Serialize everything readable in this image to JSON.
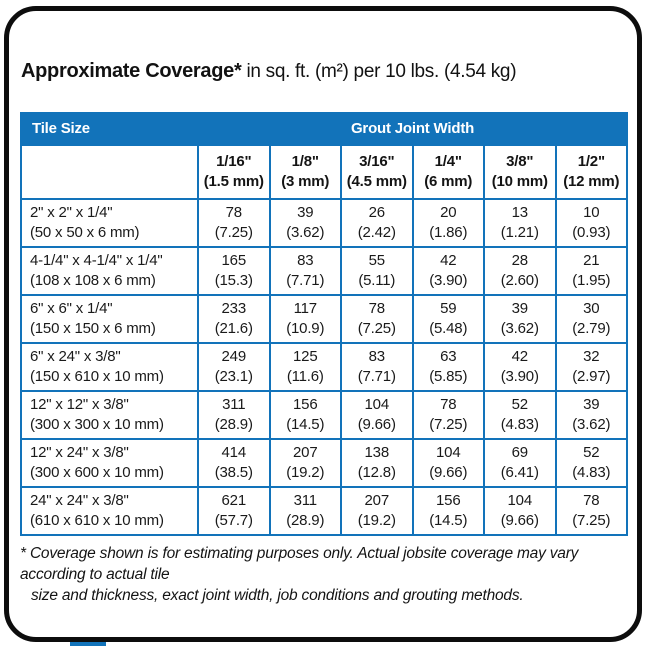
{
  "title": {
    "main": "Approximate Coverage*",
    "suffix": "in sq. ft. (m²) per 10 lbs. (4.54 kg)"
  },
  "colors": {
    "accent_blue": "#1273ba",
    "frame_black": "#0d0d0d",
    "header_text": "#ffffff",
    "body_text": "#1a1a1a"
  },
  "table": {
    "header": {
      "tile_size": "Tile Size",
      "grout_joint_width": "Grout Joint Width"
    },
    "columns": [
      {
        "width": "1/16\"",
        "metric": "(1.5 mm)"
      },
      {
        "width": "1/8\"",
        "metric": "(3 mm)"
      },
      {
        "width": "3/16\"",
        "metric": "(4.5 mm)"
      },
      {
        "width": "1/4\"",
        "metric": "(6 mm)"
      },
      {
        "width": "3/8\"",
        "metric": "(10 mm)"
      },
      {
        "width": "1/2\"",
        "metric": "(12 mm)"
      }
    ],
    "rows": [
      {
        "size": "2\" x 2\" x 1/4\"",
        "size_metric": "(50 x 50 x 6 mm)",
        "values": [
          {
            "sqft": "78",
            "m2": "(7.25)"
          },
          {
            "sqft": "39",
            "m2": "(3.62)"
          },
          {
            "sqft": "26",
            "m2": "(2.42)"
          },
          {
            "sqft": "20",
            "m2": "(1.86)"
          },
          {
            "sqft": "13",
            "m2": "(1.21)"
          },
          {
            "sqft": "10",
            "m2": "(0.93)"
          }
        ]
      },
      {
        "size": "4-1/4\" x 4-1/4\" x 1/4\"",
        "size_metric": "(108 x 108 x 6 mm)",
        "values": [
          {
            "sqft": "165",
            "m2": "(15.3)"
          },
          {
            "sqft": "83",
            "m2": "(7.71)"
          },
          {
            "sqft": "55",
            "m2": "(5.11)"
          },
          {
            "sqft": "42",
            "m2": "(3.90)"
          },
          {
            "sqft": "28",
            "m2": "(2.60)"
          },
          {
            "sqft": "21",
            "m2": "(1.95)"
          }
        ]
      },
      {
        "size": "6\" x 6\" x 1/4\"",
        "size_metric": "(150 x 150 x 6 mm)",
        "values": [
          {
            "sqft": "233",
            "m2": "(21.6)"
          },
          {
            "sqft": "117",
            "m2": "(10.9)"
          },
          {
            "sqft": "78",
            "m2": "(7.25)"
          },
          {
            "sqft": "59",
            "m2": "(5.48)"
          },
          {
            "sqft": "39",
            "m2": "(3.62)"
          },
          {
            "sqft": "30",
            "m2": "(2.79)"
          }
        ]
      },
      {
        "size": "6\" x 24\" x 3/8\"",
        "size_metric": "(150 x 610 x 10 mm)",
        "values": [
          {
            "sqft": "249",
            "m2": "(23.1)"
          },
          {
            "sqft": "125",
            "m2": "(11.6)"
          },
          {
            "sqft": "83",
            "m2": "(7.71)"
          },
          {
            "sqft": "63",
            "m2": "(5.85)"
          },
          {
            "sqft": "42",
            "m2": "(3.90)"
          },
          {
            "sqft": "32",
            "m2": "(2.97)"
          }
        ]
      },
      {
        "size": "12\" x 12\" x 3/8\"",
        "size_metric": "(300 x 300 x 10 mm)",
        "values": [
          {
            "sqft": "311",
            "m2": "(28.9)"
          },
          {
            "sqft": "156",
            "m2": "(14.5)"
          },
          {
            "sqft": "104",
            "m2": "(9.66)"
          },
          {
            "sqft": "78",
            "m2": "(7.25)"
          },
          {
            "sqft": "52",
            "m2": "(4.83)"
          },
          {
            "sqft": "39",
            "m2": "(3.62)"
          }
        ]
      },
      {
        "size": "12\" x 24\" x 3/8\"",
        "size_metric": "(300 x 600 x 10 mm)",
        "values": [
          {
            "sqft": "414",
            "m2": "(38.5)"
          },
          {
            "sqft": "207",
            "m2": "(19.2)"
          },
          {
            "sqft": "138",
            "m2": "(12.8)"
          },
          {
            "sqft": "104",
            "m2": "(9.66)"
          },
          {
            "sqft": "69",
            "m2": "(6.41)"
          },
          {
            "sqft": "52",
            "m2": "(4.83)"
          }
        ]
      },
      {
        "size": "24\" x 24\" x 3/8\"",
        "size_metric": "(610 x 610 x 10 mm)",
        "values": [
          {
            "sqft": "621",
            "m2": "(57.7)"
          },
          {
            "sqft": "311",
            "m2": "(28.9)"
          },
          {
            "sqft": "207",
            "m2": "(19.2)"
          },
          {
            "sqft": "156",
            "m2": "(14.5)"
          },
          {
            "sqft": "104",
            "m2": "(9.66)"
          },
          {
            "sqft": "78",
            "m2": "(7.25)"
          }
        ]
      }
    ]
  },
  "footnote": {
    "line1": "* Coverage shown is for estimating purposes only. Actual jobsite coverage may vary according to actual tile",
    "line2": "size and thickness, exact joint width, job conditions and grouting methods."
  }
}
